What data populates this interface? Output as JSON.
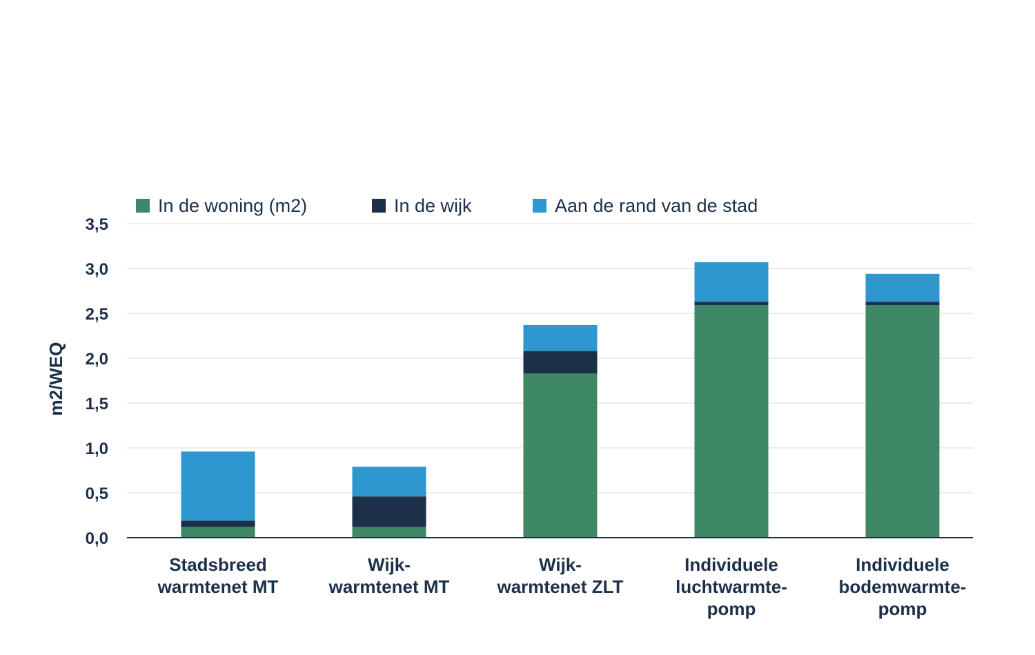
{
  "chart_data": {
    "type": "bar",
    "stacked": true,
    "ylabel": "m2/WEQ",
    "xlabel": "",
    "ylim": [
      0,
      3.5
    ],
    "yticks": [
      "0,0",
      "0,5",
      "1,0",
      "1,5",
      "2,0",
      "2,5",
      "3,0",
      "3,5"
    ],
    "grid": true,
    "legend_position": "top-left",
    "categories": [
      [
        "Stadsbreed",
        "warmtenet MT"
      ],
      [
        "Wijk-",
        "warmtenet MT"
      ],
      [
        "Wijk-",
        "warmtenet ZLT"
      ],
      [
        "Individuele",
        "luchtwarmte-",
        "pomp"
      ],
      [
        "Individuele",
        "bodemwarmte-",
        "pomp"
      ]
    ],
    "series": [
      {
        "name": "In de woning (m2)",
        "color": "#3f8866",
        "values": [
          0.12,
          0.12,
          1.83,
          2.59,
          2.59
        ]
      },
      {
        "name": "In de wijk",
        "color": "#1d3049",
        "values": [
          0.07,
          0.34,
          0.25,
          0.04,
          0.04
        ]
      },
      {
        "name": "Aan de rand van de stad",
        "color": "#2f97cf",
        "values": [
          0.77,
          0.33,
          0.29,
          0.44,
          0.31
        ]
      }
    ],
    "gridline_color": "#e6e6e6",
    "axis_color": "#1d3049"
  }
}
